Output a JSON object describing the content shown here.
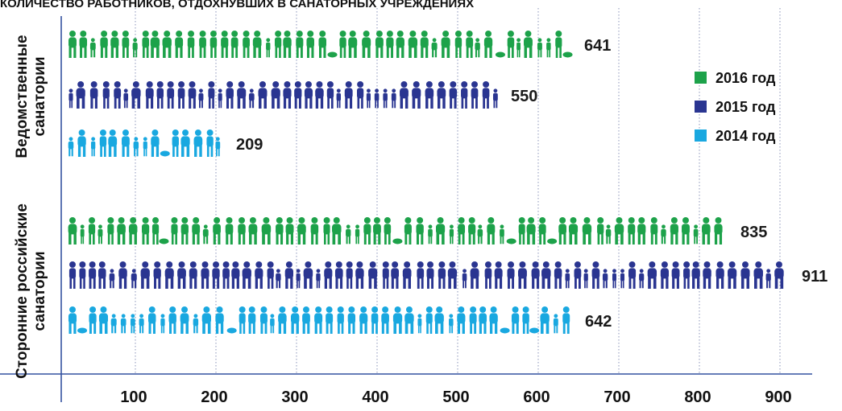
{
  "chart_data": {
    "type": "bar",
    "title": "КОЛИЧЕСТВО РАБОТНИКОВ, ОТДОХНУВШИХ В САНАТОРНЫХ УЧРЕЖДЕНИЯХ",
    "xlabel": "",
    "ylabel": "",
    "orientation": "horizontal",
    "mark_style": "pictogram",
    "xlim": [
      0,
      930
    ],
    "xticks": [
      100,
      200,
      300,
      400,
      500,
      600,
      700,
      800,
      900
    ],
    "grid": true,
    "legend_position": "right",
    "categories": [
      "Ведомственные санатории",
      "Сторонние российские санатории"
    ],
    "series": [
      {
        "name": "2016 год",
        "color": "#1da24a",
        "values": [
          641,
          835
        ]
      },
      {
        "name": "2015 год",
        "color": "#2a3591",
        "values": [
          550,
          911
        ]
      },
      {
        "name": "2014 год",
        "color": "#19a8e0",
        "values": [
          209,
          642
        ]
      }
    ]
  }
}
